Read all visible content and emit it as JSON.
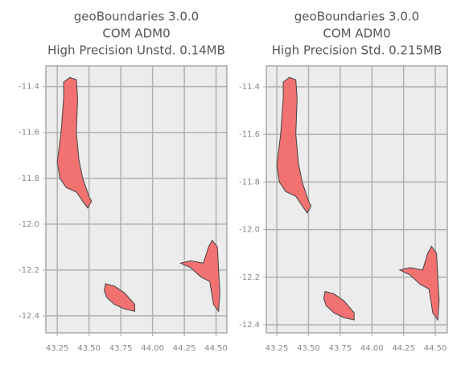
{
  "chart_data": [
    {
      "type": "map",
      "title": [
        "geoBoundaries 3.0.0",
        "COM ADM0",
        "High Precision Unstd. 0.14MB"
      ],
      "xlim": [
        43.16,
        44.585
      ],
      "ylim": [
        -12.474,
        -11.31
      ],
      "xticks": [
        43.25,
        {
          "value": 43.5,
          "label": "43.50"
        },
        43.75,
        {
          "value": 44,
          "label": "44.00"
        },
        44.25,
        {
          "value": 44.5,
          "label": "44.50"
        }
      ],
      "yticks": [
        -11.4,
        -11.6,
        -11.8,
        {
          "value": -12,
          "label": "-12.0"
        },
        -12.2,
        -12.4
      ],
      "grid": true,
      "color": "#f26b6b",
      "polygons": [
        [
          [
            43.3,
            -11.38
          ],
          [
            43.35,
            -11.36
          ],
          [
            43.4,
            -11.37
          ],
          [
            43.41,
            -11.45
          ],
          [
            43.4,
            -11.6
          ],
          [
            43.42,
            -11.72
          ],
          [
            43.45,
            -11.8
          ],
          [
            43.5,
            -11.88
          ],
          [
            43.52,
            -11.9
          ],
          [
            43.49,
            -11.93
          ],
          [
            43.45,
            -11.9
          ],
          [
            43.4,
            -11.86
          ],
          [
            43.32,
            -11.84
          ],
          [
            43.27,
            -11.8
          ],
          [
            43.25,
            -11.73
          ],
          [
            43.28,
            -11.6
          ],
          [
            43.3,
            -11.45
          ]
        ],
        [
          [
            43.63,
            -12.26
          ],
          [
            43.7,
            -12.27
          ],
          [
            43.78,
            -12.3
          ],
          [
            43.86,
            -12.35
          ],
          [
            43.86,
            -12.38
          ],
          [
            43.78,
            -12.37
          ],
          [
            43.7,
            -12.35
          ],
          [
            43.64,
            -12.32
          ],
          [
            43.62,
            -12.29
          ]
        ],
        [
          [
            44.47,
            -12.07
          ],
          [
            44.51,
            -12.1
          ],
          [
            44.52,
            -12.2
          ],
          [
            44.53,
            -12.3
          ],
          [
            44.52,
            -12.38
          ],
          [
            44.48,
            -12.35
          ],
          [
            44.45,
            -12.25
          ],
          [
            44.38,
            -12.23
          ],
          [
            44.3,
            -12.19
          ],
          [
            44.22,
            -12.17
          ],
          [
            44.3,
            -12.16
          ],
          [
            44.4,
            -12.17
          ],
          [
            44.44,
            -12.1
          ]
        ]
      ]
    },
    {
      "type": "map",
      "title": [
        "geoBoundaries 3.0.0",
        "COM ADM0",
        "High Precision Std. 0.215MB"
      ],
      "xlim": [
        43.167,
        44.595
      ],
      "ylim": [
        -12.434,
        -11.312
      ],
      "xticks": [
        43.25,
        {
          "value": 43.5,
          "label": "43.50"
        },
        43.75,
        {
          "value": 44,
          "label": "44.00"
        },
        44.25,
        {
          "value": 44.5,
          "label": "44.50"
        }
      ],
      "yticks": [
        -11.4,
        -11.6,
        -11.8,
        {
          "value": -12,
          "label": "-12.0"
        },
        -12.2,
        -12.4
      ],
      "grid": true,
      "color": "#f26b6b",
      "polygons": [
        [
          [
            43.3,
            -11.38
          ],
          [
            43.35,
            -11.36
          ],
          [
            43.4,
            -11.37
          ],
          [
            43.41,
            -11.45
          ],
          [
            43.4,
            -11.6
          ],
          [
            43.42,
            -11.72
          ],
          [
            43.45,
            -11.8
          ],
          [
            43.5,
            -11.88
          ],
          [
            43.52,
            -11.9
          ],
          [
            43.49,
            -11.93
          ],
          [
            43.45,
            -11.9
          ],
          [
            43.4,
            -11.86
          ],
          [
            43.32,
            -11.84
          ],
          [
            43.27,
            -11.8
          ],
          [
            43.25,
            -11.73
          ],
          [
            43.28,
            -11.6
          ],
          [
            43.3,
            -11.45
          ]
        ],
        [
          [
            43.63,
            -12.26
          ],
          [
            43.7,
            -12.27
          ],
          [
            43.78,
            -12.3
          ],
          [
            43.86,
            -12.35
          ],
          [
            43.86,
            -12.38
          ],
          [
            43.78,
            -12.37
          ],
          [
            43.7,
            -12.35
          ],
          [
            43.64,
            -12.32
          ],
          [
            43.62,
            -12.29
          ]
        ],
        [
          [
            44.47,
            -12.07
          ],
          [
            44.51,
            -12.1
          ],
          [
            44.52,
            -12.2
          ],
          [
            44.53,
            -12.3
          ],
          [
            44.52,
            -12.38
          ],
          [
            44.48,
            -12.35
          ],
          [
            44.45,
            -12.25
          ],
          [
            44.38,
            -12.23
          ],
          [
            44.3,
            -12.19
          ],
          [
            44.22,
            -12.17
          ],
          [
            44.3,
            -12.16
          ],
          [
            44.4,
            -12.17
          ],
          [
            44.44,
            -12.1
          ]
        ]
      ]
    }
  ]
}
